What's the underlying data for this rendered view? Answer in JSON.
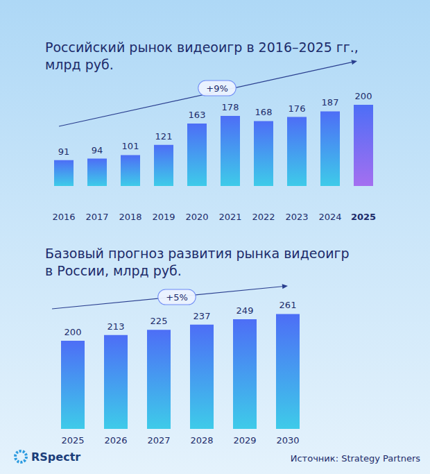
{
  "chart_data": [
    {
      "type": "bar",
      "title": "Российский рынок видеоигр в 2016–2025 гг.,\nмлрд руб.",
      "annotation": "+9%",
      "categories": [
        "2016",
        "2017",
        "2018",
        "2019",
        "2020",
        "2021",
        "2022",
        "2023",
        "2024",
        "2025"
      ],
      "values": [
        91,
        94,
        101,
        121,
        163,
        178,
        168,
        176,
        187,
        200
      ],
      "colors": [
        "#3ecbe9",
        "#3ecbe9",
        "#3ecbe9",
        "#3ecbe9",
        "#3ecbe9",
        "#3ecbe9",
        "#3ecbe9",
        "#3ecbe9",
        "#3ecbe9",
        "#a46ff0"
      ],
      "ylim": [
        40,
        215
      ],
      "yticks": [
        40,
        215
      ],
      "grid": false,
      "data_labels": true,
      "tick_labels": "x"
    },
    {
      "type": "bar",
      "title": "Базовый прогноз развития рынка видеоигр\nв России, млрд руб.",
      "annotation": "+5%",
      "categories": [
        "2025",
        "2026",
        "2027",
        "2028",
        "2029",
        "2030"
      ],
      "values": [
        200,
        213,
        225,
        237,
        249,
        261
      ],
      "colors": [
        "#3ecbe9",
        "#3ecbe9",
        "#3ecbe9",
        "#3ecbe9",
        "#3ecbe9",
        "#3ecbe9"
      ],
      "ylim": [
        0,
        290
      ],
      "yticks": [
        0,
        290
      ],
      "grid": false,
      "data_labels": true,
      "tick_labels": "x"
    }
  ],
  "logo": "RSpectr",
  "source": "Источник: Strategy Partners"
}
